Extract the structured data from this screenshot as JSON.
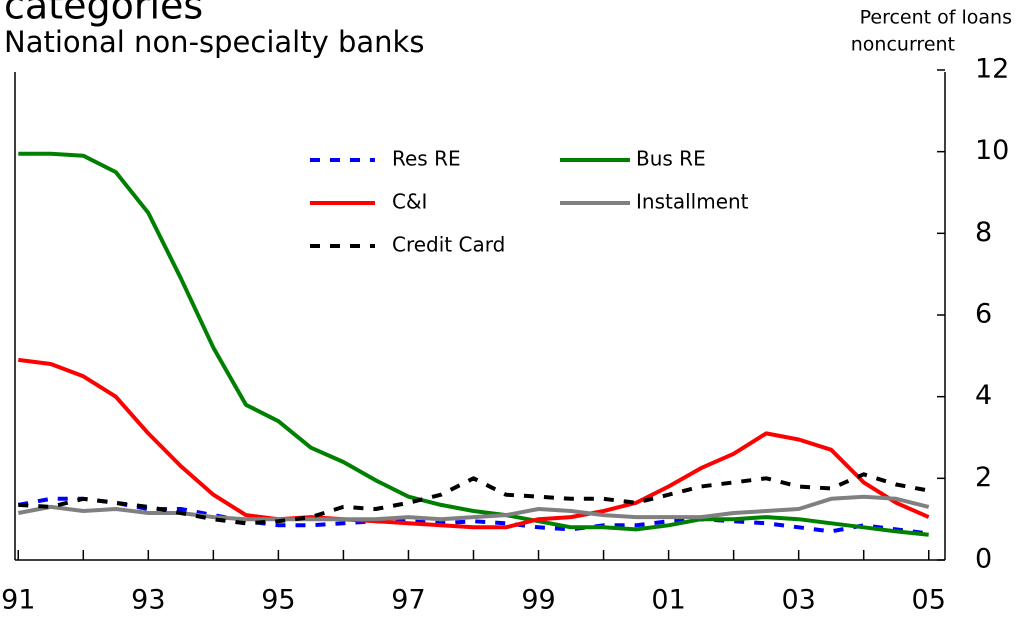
{
  "chart_data": {
    "type": "line",
    "title": "categories",
    "subtitle": "National non-specialty banks",
    "ylabel": [
      "Percent of loans",
      "noncurrent"
    ],
    "x": [
      1991,
      1991.5,
      1992,
      1992.5,
      1993,
      1993.5,
      1994,
      1994.5,
      1995,
      1995.5,
      1996,
      1996.5,
      1997,
      1997.5,
      1998,
      1998.5,
      1999,
      1999.5,
      2000,
      2000.5,
      2001,
      2001.5,
      2002,
      2002.5,
      2003,
      2003.5,
      2004,
      2004.5,
      2005
    ],
    "series": [
      {
        "name": "Res RE",
        "color": "#0000ff",
        "dashed": true,
        "values": [
          1.35,
          1.5,
          1.5,
          1.4,
          1.25,
          1.25,
          1.1,
          0.95,
          0.85,
          0.85,
          0.9,
          0.95,
          0.95,
          0.9,
          0.95,
          0.9,
          0.8,
          0.75,
          0.85,
          0.85,
          0.95,
          1.0,
          0.95,
          0.9,
          0.8,
          0.7,
          0.85,
          0.75,
          0.65
        ]
      },
      {
        "name": "Bus RE",
        "color": "#008000",
        "dashed": false,
        "values": [
          9.95,
          9.95,
          9.9,
          9.5,
          8.5,
          6.9,
          5.2,
          3.8,
          3.4,
          2.75,
          2.4,
          1.95,
          1.55,
          1.35,
          1.2,
          1.1,
          0.95,
          0.8,
          0.8,
          0.75,
          0.85,
          1.0,
          1.0,
          1.05,
          1.0,
          0.9,
          0.8,
          0.7,
          0.62
        ]
      },
      {
        "name": "C&I",
        "color": "#ff0000",
        "dashed": false,
        "values": [
          4.9,
          4.8,
          4.5,
          4.0,
          3.1,
          2.3,
          1.6,
          1.1,
          1.0,
          1.05,
          1.0,
          0.95,
          0.9,
          0.85,
          0.8,
          0.8,
          1.0,
          1.05,
          1.2,
          1.4,
          1.8,
          2.25,
          2.6,
          3.1,
          2.95,
          2.7,
          1.9,
          1.4,
          1.05
        ]
      },
      {
        "name": "Installment",
        "color": "#808080",
        "dashed": false,
        "values": [
          1.15,
          1.3,
          1.2,
          1.25,
          1.15,
          1.15,
          1.05,
          1.0,
          1.0,
          1.0,
          1.0,
          1.0,
          1.05,
          1.0,
          1.05,
          1.1,
          1.25,
          1.2,
          1.1,
          1.05,
          1.05,
          1.05,
          1.15,
          1.2,
          1.25,
          1.5,
          1.55,
          1.5,
          1.3
        ]
      },
      {
        "name": "Credit Card",
        "color": "#000000",
        "dashed": true,
        "values": [
          1.35,
          1.3,
          1.5,
          1.4,
          1.3,
          1.15,
          1.0,
          0.9,
          0.95,
          1.05,
          1.3,
          1.25,
          1.4,
          1.6,
          2.0,
          1.6,
          1.55,
          1.5,
          1.5,
          1.4,
          1.6,
          1.8,
          1.9,
          2.0,
          1.8,
          1.75,
          2.1,
          1.85,
          1.7
        ]
      }
    ],
    "xlim": [
      1990.95,
      2005.25
    ],
    "xticks": [
      {
        "value": 1991,
        "label": "91"
      },
      {
        "value": 1993,
        "label": "93"
      },
      {
        "value": 1995,
        "label": "95"
      },
      {
        "value": 1997,
        "label": "97"
      },
      {
        "value": 1999,
        "label": "99"
      },
      {
        "value": 2001,
        "label": "01"
      },
      {
        "value": 2003,
        "label": "03"
      },
      {
        "value": 2005,
        "label": "05"
      }
    ],
    "minor_xticks": [
      1992,
      1994,
      1996,
      1998,
      2000,
      2002,
      2004
    ],
    "ylim": [
      0,
      12
    ],
    "yticks": [
      0,
      2,
      4,
      6,
      8,
      10,
      12
    ],
    "grid": false
  }
}
